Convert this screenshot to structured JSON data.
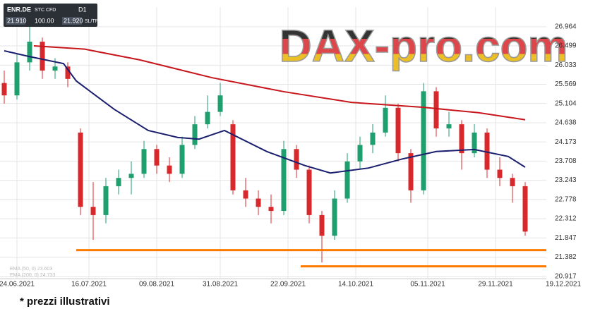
{
  "chart_data": {
    "type": "candlestick",
    "watermark": "DAX-pro.com",
    "footnote": "* prezzi illustrativi",
    "toolbar": {
      "symbol": "ENR.DE",
      "instrument": "STC CFD",
      "timeframe": "D1",
      "bid": "21.910",
      "size": "100.00",
      "ask": "21.920",
      "sltp": "SL/TP"
    },
    "x": [
      1,
      4,
      7,
      10,
      13,
      16,
      19,
      22,
      25,
      28,
      31,
      34,
      37,
      40,
      43,
      46,
      49,
      52,
      55,
      58,
      61,
      64,
      67,
      70,
      73,
      76,
      79,
      82,
      85,
      88,
      91,
      94,
      97,
      100,
      103,
      106,
      109,
      112,
      115,
      118,
      121,
      124
    ],
    "open": [
      25.6,
      25.3,
      26.1,
      26.6,
      25.9,
      26.0,
      24.4,
      22.6,
      22.4,
      23.1,
      23.3,
      23.4,
      24.0,
      23.6,
      23.4,
      24.1,
      24.6,
      24.9,
      24.6,
      23.0,
      22.8,
      22.6,
      22.5,
      24.0,
      23.5,
      22.4,
      21.9,
      22.8,
      23.7,
      24.1,
      24.4,
      25.0,
      23.9,
      23.0,
      25.4,
      24.5,
      24.6,
      23.9,
      24.4,
      23.5,
      23.3,
      23.1
    ],
    "high": [
      25.9,
      26.3,
      27.0,
      26.7,
      26.2,
      26.1,
      24.5,
      23.2,
      23.3,
      23.5,
      23.7,
      24.2,
      24.1,
      23.8,
      24.3,
      24.8,
      25.3,
      25.6,
      24.7,
      23.3,
      23.0,
      22.9,
      24.2,
      24.1,
      23.6,
      22.5,
      23.0,
      23.9,
      24.3,
      24.6,
      25.3,
      25.1,
      24.0,
      25.6,
      25.5,
      24.9,
      24.7,
      24.6,
      24.5,
      23.8,
      23.4,
      23.2
    ],
    "low": [
      25.1,
      25.2,
      25.9,
      25.7,
      25.7,
      25.5,
      22.4,
      21.8,
      22.2,
      22.9,
      22.9,
      23.3,
      23.4,
      23.2,
      23.3,
      24.0,
      24.5,
      24.8,
      22.9,
      22.6,
      22.4,
      22.2,
      22.4,
      23.3,
      22.2,
      21.25,
      21.8,
      22.7,
      23.5,
      23.9,
      24.3,
      23.7,
      22.7,
      22.9,
      24.3,
      24.3,
      23.5,
      23.8,
      23.3,
      23.1,
      22.7,
      21.9
    ],
    "close": [
      25.3,
      26.1,
      26.6,
      25.9,
      26.0,
      25.7,
      22.6,
      22.4,
      23.1,
      23.3,
      23.4,
      24.0,
      23.6,
      23.4,
      24.1,
      24.6,
      24.9,
      25.3,
      23.0,
      22.8,
      22.6,
      22.5,
      24.0,
      23.5,
      22.4,
      21.9,
      22.8,
      23.7,
      24.1,
      24.4,
      25.0,
      23.9,
      23.0,
      25.4,
      24.5,
      24.6,
      23.9,
      24.4,
      23.5,
      23.3,
      23.1,
      22.0
    ],
    "up_color": "#1f9e6e",
    "down_color": "#d8282c",
    "lines": [
      {
        "label": "EMA (50, 0) 23.603",
        "color": "#1a1f6e",
        "x": [
          1,
          7,
          15,
          18,
          27,
          35,
          42,
          47,
          53,
          63,
          72,
          78,
          87,
          95,
          103,
          112,
          120,
          124
        ],
        "values": [
          26.38,
          26.24,
          26.07,
          25.65,
          24.96,
          24.45,
          24.28,
          24.24,
          24.45,
          23.94,
          23.6,
          23.42,
          23.54,
          23.76,
          23.94,
          23.99,
          23.82,
          23.56
        ]
      },
      {
        "label": "EMA (200, 0) 24.733",
        "color": "#c8161d",
        "x": [
          8,
          20,
          33,
          50,
          67,
          83,
          100,
          113,
          124
        ],
        "values": [
          26.5,
          26.42,
          26.16,
          25.73,
          25.39,
          25.13,
          25.01,
          24.88,
          24.71
        ]
      }
    ],
    "hlines": [
      {
        "value": 21.55,
        "x_start": 18,
        "color": "#ff7a00"
      },
      {
        "value": 21.16,
        "x_start": 71,
        "color": "#ff7a00"
      }
    ],
    "xlim": [
      0,
      129
    ],
    "xticks": [
      {
        "value": 4,
        "label": "24.06.2021"
      },
      {
        "value": 21,
        "label": "16.07.2021"
      },
      {
        "value": 37,
        "label": "09.08.2021"
      },
      {
        "value": 52,
        "label": "31.08.2021"
      },
      {
        "value": 68,
        "label": "22.09.2021"
      },
      {
        "value": 84,
        "label": "14.10.2021"
      },
      {
        "value": 101,
        "label": "05.11.2021"
      },
      {
        "value": 117,
        "label": "29.11.2021"
      },
      {
        "value": 133,
        "label": "19.12.2021"
      }
    ],
    "ylim": [
      20.86,
      27.44
    ],
    "yticks": [
      26.964,
      26.499,
      26.033,
      25.569,
      25.104,
      24.638,
      24.173,
      23.708,
      23.243,
      22.778,
      22.312,
      21.847,
      21.382,
      20.917
    ],
    "grid": true
  }
}
